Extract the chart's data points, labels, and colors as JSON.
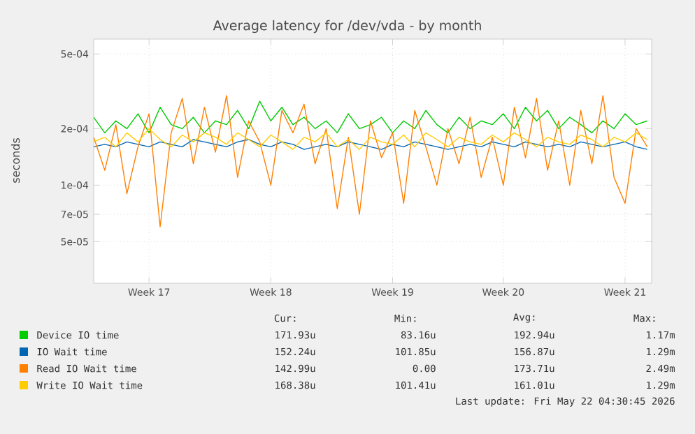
{
  "chart_data": {
    "type": "line",
    "title": "Average latency for /dev/vda - by month",
    "ylabel": "seconds",
    "log": true,
    "grid": true,
    "legend": "bottom",
    "categories": [
      null,
      null,
      null,
      null,
      null,
      "Week 17",
      null,
      null,
      null,
      null,
      null,
      null,
      null,
      null,
      null,
      null,
      "Week 18",
      null,
      null,
      null,
      null,
      null,
      null,
      null,
      null,
      null,
      null,
      "Week 19",
      null,
      null,
      null,
      null,
      null,
      null,
      null,
      null,
      null,
      "Week 20",
      null,
      null,
      null,
      null,
      null,
      null,
      null,
      null,
      null,
      null,
      "Week 21",
      null,
      null
    ],
    "ylim": [
      3e-05,
      0.0006
    ],
    "yticks": [
      {
        "value": 5e-05,
        "label": "5e-05"
      },
      {
        "value": 7e-05,
        "label": "7e-05"
      },
      {
        "value": 0.0001,
        "label": "1e-04"
      },
      {
        "value": 0.0002,
        "label": "2e-04"
      },
      {
        "value": 0.0005,
        "label": "5e-04"
      }
    ],
    "series": [
      {
        "name": "Device IO time",
        "color": "#00cc00",
        "values": [
          0.00023,
          0.00019,
          0.00022,
          0.0002,
          0.00024,
          0.00019,
          0.00026,
          0.00021,
          0.0002,
          0.00023,
          0.00019,
          0.00022,
          0.00021,
          0.00025,
          0.0002,
          0.00028,
          0.00022,
          0.00026,
          0.00021,
          0.00023,
          0.0002,
          0.00022,
          0.00019,
          0.00024,
          0.0002,
          0.00021,
          0.00023,
          0.00019,
          0.00022,
          0.0002,
          0.00025,
          0.00021,
          0.00019,
          0.00023,
          0.0002,
          0.00022,
          0.00021,
          0.00024,
          0.0002,
          0.00026,
          0.00022,
          0.00025,
          0.0002,
          0.00023,
          0.00021,
          0.00019,
          0.00022,
          0.0002,
          0.00024,
          0.00021,
          0.00022
        ]
      },
      {
        "name": "IO Wait time",
        "color": "#0066b3",
        "values": [
          0.00016,
          0.000165,
          0.00016,
          0.00017,
          0.000165,
          0.00016,
          0.00017,
          0.000165,
          0.00016,
          0.000175,
          0.00017,
          0.000165,
          0.00016,
          0.00017,
          0.000175,
          0.000165,
          0.00016,
          0.00017,
          0.000165,
          0.000155,
          0.00016,
          0.000165,
          0.00016,
          0.00017,
          0.000165,
          0.00016,
          0.000155,
          0.000165,
          0.00016,
          0.00017,
          0.000165,
          0.00016,
          0.000155,
          0.00016,
          0.000165,
          0.00016,
          0.00017,
          0.000165,
          0.00016,
          0.00017,
          0.000165,
          0.00016,
          0.000165,
          0.00016,
          0.00017,
          0.000165,
          0.00016,
          0.000165,
          0.00017,
          0.00016,
          0.000155
        ]
      },
      {
        "name": "Read IO Wait time",
        "color": "#ff8000",
        "values": [
          0.00018,
          0.00012,
          0.00021,
          9e-05,
          0.00016,
          0.00024,
          6e-05,
          0.00019,
          0.00029,
          0.00013,
          0.00026,
          0.00015,
          0.0003,
          0.00011,
          0.00022,
          0.00017,
          0.0001,
          0.00025,
          0.00019,
          0.00027,
          0.00013,
          0.0002,
          7.5e-05,
          0.00018,
          7e-05,
          0.00022,
          0.00014,
          0.00019,
          8e-05,
          0.00025,
          0.00016,
          0.0001,
          0.0002,
          0.00013,
          0.00023,
          0.00011,
          0.00018,
          0.0001,
          0.00026,
          0.00014,
          0.00029,
          0.00012,
          0.00022,
          0.0001,
          0.00025,
          0.00013,
          0.0003,
          0.00011,
          8e-05,
          0.0002,
          0.00016
        ]
      },
      {
        "name": "Write IO Wait time",
        "color": "#ffcc00",
        "values": [
          0.00017,
          0.00018,
          0.00016,
          0.00019,
          0.00017,
          0.0002,
          0.000175,
          0.00016,
          0.000185,
          0.00017,
          0.00019,
          0.00018,
          0.000165,
          0.00019,
          0.000175,
          0.00016,
          0.000185,
          0.00017,
          0.000155,
          0.00018,
          0.00017,
          0.00019,
          0.00016,
          0.000175,
          0.000155,
          0.00018,
          0.00017,
          0.000165,
          0.000185,
          0.00016,
          0.00019,
          0.000175,
          0.00016,
          0.00018,
          0.00017,
          0.000165,
          0.000185,
          0.00017,
          0.00019,
          0.000175,
          0.00016,
          0.00018,
          0.00017,
          0.000165,
          0.000185,
          0.000175,
          0.00016,
          0.00018,
          0.00017,
          0.00019,
          0.000175
        ]
      }
    ],
    "annotations": [
      "Cur:",
      "Min:",
      "Avg:",
      "Max:",
      "171.93u",
      "83.16u",
      "192.94u",
      "1.17m",
      "152.24u",
      "101.85u",
      "156.87u",
      "1.29m",
      "142.99u",
      "0.00",
      "173.71u",
      "2.49m",
      "168.38u",
      "101.41u",
      "161.01u",
      "1.29m",
      "Last update: Fri May 22 04:30:45 2026"
    ]
  }
}
